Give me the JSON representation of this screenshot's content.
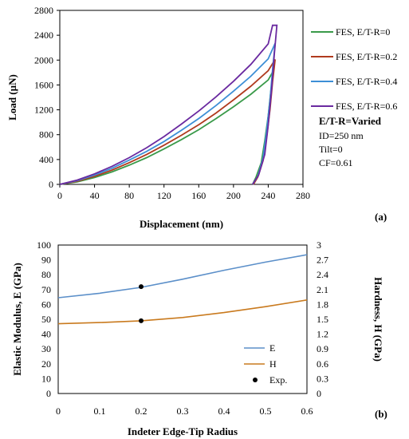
{
  "chart_data": [
    {
      "type": "line",
      "panel_label": "(a)",
      "xlabel": "Displacement (nm)",
      "ylabel": "Load (µN)",
      "xlim": [
        0,
        280
      ],
      "ylim": [
        0,
        2800
      ],
      "x_ticks": [
        0,
        40,
        80,
        120,
        160,
        200,
        240,
        280
      ],
      "y_ticks": [
        0,
        400,
        800,
        1200,
        1600,
        2000,
        2400,
        2800
      ],
      "grid": false,
      "legend_position": "right",
      "series": [
        {
          "name": "FES, E/T-R=0",
          "color": "#3a9a4a",
          "loading": [
            [
              0,
              0
            ],
            [
              20,
              40
            ],
            [
              40,
              110
            ],
            [
              60,
              200
            ],
            [
              80,
              310
            ],
            [
              100,
              430
            ],
            [
              120,
              570
            ],
            [
              140,
              720
            ],
            [
              160,
              880
            ],
            [
              180,
              1060
            ],
            [
              200,
              1250
            ],
            [
              220,
              1450
            ],
            [
              240,
              1680
            ],
            [
              246,
              1830
            ]
          ],
          "unloading": [
            [
              246,
              1830
            ],
            [
              243,
              1500
            ],
            [
              240,
              1100
            ],
            [
              236,
              700
            ],
            [
              232,
              350
            ],
            [
              226,
              120
            ],
            [
              222,
              0
            ]
          ]
        },
        {
          "name": "FES, E/T-R=0.2",
          "color": "#b03a1e",
          "loading": [
            [
              0,
              0
            ],
            [
              20,
              50
            ],
            [
              40,
              130
            ],
            [
              60,
              230
            ],
            [
              80,
              350
            ],
            [
              100,
              480
            ],
            [
              120,
              630
            ],
            [
              140,
              790
            ],
            [
              160,
              960
            ],
            [
              180,
              1150
            ],
            [
              200,
              1360
            ],
            [
              220,
              1580
            ],
            [
              240,
              1830
            ],
            [
              248,
              2010
            ]
          ],
          "unloading": [
            [
              248,
              2010
            ],
            [
              245,
              1650
            ],
            [
              242,
              1200
            ],
            [
              238,
              750
            ],
            [
              234,
              380
            ],
            [
              228,
              120
            ],
            [
              223,
              0
            ]
          ]
        },
        {
          "name": "FES, E/T-R=0.4",
          "color": "#3d8fd6",
          "loading": [
            [
              0,
              0
            ],
            [
              20,
              60
            ],
            [
              40,
              150
            ],
            [
              60,
              260
            ],
            [
              80,
              390
            ],
            [
              100,
              530
            ],
            [
              120,
              690
            ],
            [
              140,
              870
            ],
            [
              160,
              1060
            ],
            [
              180,
              1270
            ],
            [
              200,
              1500
            ],
            [
              220,
              1740
            ],
            [
              240,
              2020
            ],
            [
              248,
              2270
            ]
          ],
          "unloading": [
            [
              248,
              2270
            ],
            [
              245,
              1850
            ],
            [
              242,
              1350
            ],
            [
              238,
              850
            ],
            [
              234,
              420
            ],
            [
              228,
              130
            ],
            [
              222,
              0
            ]
          ]
        },
        {
          "name": "FES, E/T-R=0.6",
          "color": "#6a2aa0",
          "loading": [
            [
              0,
              0
            ],
            [
              20,
              70
            ],
            [
              40,
              170
            ],
            [
              60,
              290
            ],
            [
              80,
              430
            ],
            [
              100,
              590
            ],
            [
              120,
              770
            ],
            [
              140,
              970
            ],
            [
              160,
              1180
            ],
            [
              180,
              1410
            ],
            [
              200,
              1660
            ],
            [
              220,
              1930
            ],
            [
              240,
              2260
            ],
            [
              245,
              2560
            ],
            [
              250,
              2560
            ]
          ],
          "unloading": [
            [
              250,
              2560
            ],
            [
              247,
              2100
            ],
            [
              244,
              1550
            ],
            [
              240,
              950
            ],
            [
              236,
              480
            ],
            [
              229,
              150
            ],
            [
              222,
              0
            ]
          ]
        }
      ],
      "annotation": {
        "title": "E/T-R=Varied",
        "lines": [
          "ID=250 nm",
          "Tilt=0",
          "CF=0.61"
        ]
      }
    },
    {
      "type": "line",
      "panel_label": "(b)",
      "xlabel": "Indeter Edge-Tip Radius",
      "ylabel": "Elastic Modulus, E (GPa)",
      "y2label": "Hardness, H (GPa)",
      "xlim": [
        0,
        0.6
      ],
      "ylim": [
        0,
        100
      ],
      "y2lim": [
        0,
        3
      ],
      "x_ticks": [
        0,
        0.1,
        0.2,
        0.3,
        0.4,
        0.5,
        0.6
      ],
      "y_ticks": [
        0,
        10,
        20,
        30,
        40,
        50,
        60,
        70,
        80,
        90,
        100
      ],
      "y2_ticks": [
        0,
        0.3,
        0.6,
        0.9,
        1.2,
        1.5,
        1.8,
        2.1,
        2.4,
        2.7,
        3
      ],
      "grid": false,
      "legend_position": "bottom-right",
      "series": [
        {
          "name": "E",
          "color": "#5b8fc9",
          "axis": "left",
          "x": [
            0,
            0.1,
            0.2,
            0.3,
            0.4,
            0.5,
            0.6
          ],
          "values": [
            64.5,
            67.5,
            71.5,
            77,
            83,
            88.5,
            93.5
          ]
        },
        {
          "name": "H",
          "color": "#c97a1e",
          "axis": "left",
          "x": [
            0,
            0.1,
            0.2,
            0.3,
            0.4,
            0.5,
            0.6
          ],
          "values": [
            47,
            47.8,
            49,
            51.2,
            54.5,
            58.5,
            63
          ]
        },
        {
          "name": "Exp.",
          "color": "#000000",
          "type": "scatter",
          "axis": "left",
          "x": [
            0.2,
            0.2
          ],
          "values": [
            72,
            49
          ]
        }
      ]
    }
  ]
}
